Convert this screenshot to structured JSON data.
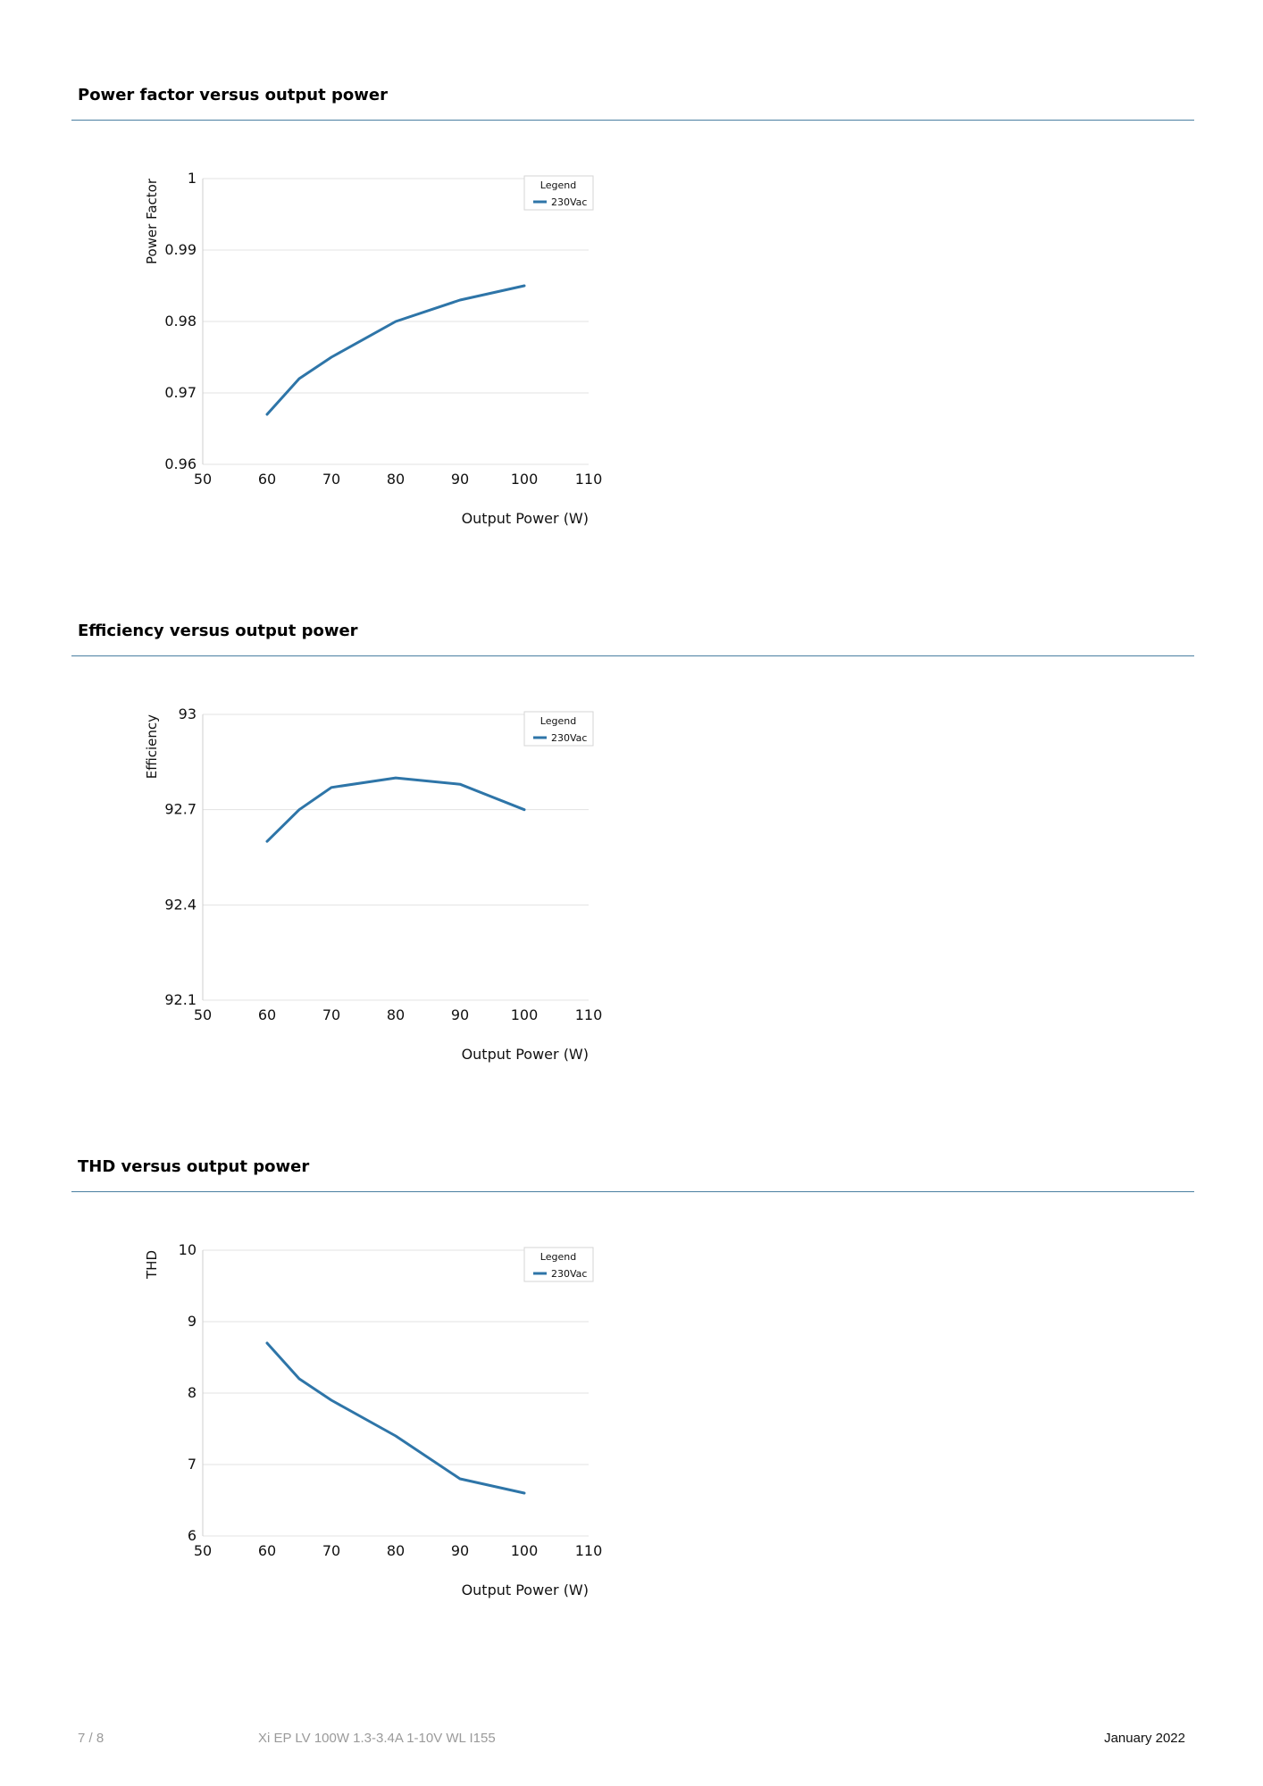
{
  "sections": [
    {
      "title": "Power factor versus output power"
    },
    {
      "title": "Efficiency versus output power"
    },
    {
      "title": "THD versus output power"
    }
  ],
  "footer": {
    "page": "7 / 8",
    "product": "Xi EP LV 100W 1.3-3.4A 1-10V WL I155",
    "date": "January 2022"
  },
  "colors": {
    "line": "#2e75a8",
    "rule": "#4a7fa1",
    "grid": "#e3e3e3"
  },
  "chart_data": [
    {
      "type": "line",
      "title": "",
      "xlabel": "Output Power (W)",
      "ylabel": "Power Factor",
      "xlim": [
        50,
        110
      ],
      "ylim": [
        0.96,
        1
      ],
      "xticks": [
        "50",
        "60",
        "70",
        "80",
        "90",
        "100",
        "110"
      ],
      "yticks": [
        "0.96",
        "0.97",
        "0.98",
        "0.99",
        "1"
      ],
      "grid": true,
      "legend": {
        "title": "Legend",
        "position": "top-right"
      },
      "series": [
        {
          "name": "230Vac",
          "x": [
            60,
            65,
            70,
            80,
            90,
            100
          ],
          "y": [
            0.967,
            0.972,
            0.975,
            0.98,
            0.983,
            0.985
          ]
        }
      ]
    },
    {
      "type": "line",
      "title": "",
      "xlabel": "Output Power (W)",
      "ylabel": "Efficiency",
      "xlim": [
        50,
        110
      ],
      "ylim": [
        92.1,
        93
      ],
      "xticks": [
        "50",
        "60",
        "70",
        "80",
        "90",
        "100",
        "110"
      ],
      "yticks": [
        "92.1",
        "92.4",
        "92.7",
        "93"
      ],
      "grid": true,
      "legend": {
        "title": "Legend",
        "position": "top-right"
      },
      "series": [
        {
          "name": "230Vac",
          "x": [
            60,
            65,
            70,
            80,
            90,
            100
          ],
          "y": [
            92.6,
            92.7,
            92.77,
            92.8,
            92.78,
            92.7
          ]
        }
      ]
    },
    {
      "type": "line",
      "title": "",
      "xlabel": "Output Power (W)",
      "ylabel": "THD",
      "xlim": [
        50,
        110
      ],
      "ylim": [
        6,
        10
      ],
      "xticks": [
        "50",
        "60",
        "70",
        "80",
        "90",
        "100",
        "110"
      ],
      "yticks": [
        "6",
        "7",
        "8",
        "9",
        "10"
      ],
      "grid": true,
      "legend": {
        "title": "Legend",
        "position": "top-right"
      },
      "series": [
        {
          "name": "230Vac",
          "x": [
            60,
            65,
            70,
            80,
            90,
            100
          ],
          "y": [
            8.7,
            8.2,
            7.9,
            7.4,
            6.8,
            6.6
          ]
        }
      ]
    }
  ]
}
